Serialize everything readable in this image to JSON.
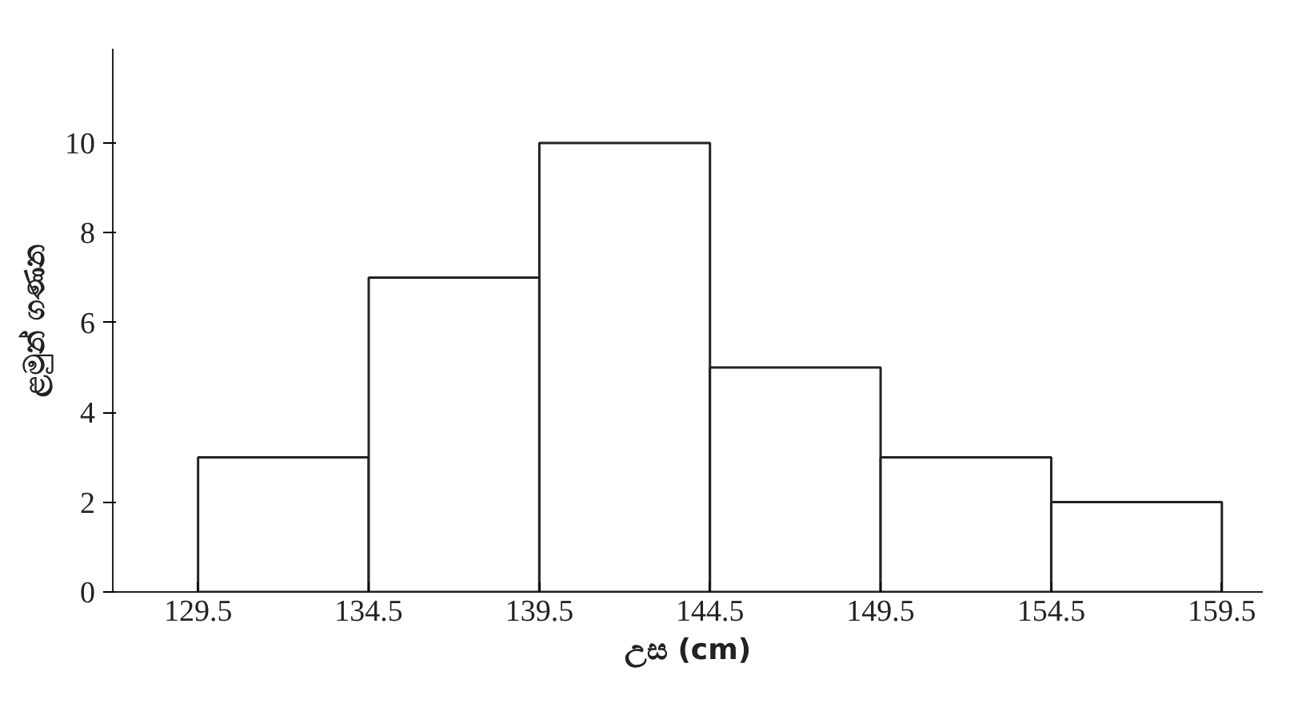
{
  "chart_data": {
    "type": "histogram",
    "xlabel": "උස (cm)",
    "ylabel": "ළමුන් ගණන",
    "bins": [
      129.5,
      134.5,
      139.5,
      144.5,
      149.5,
      154.5,
      159.5
    ],
    "values": [
      3,
      7,
      10,
      5,
      3,
      2
    ],
    "color": "#ffffff",
    "xlim": [
      127,
      160.7
    ],
    "ylim": [
      0,
      12.1
    ],
    "xticks": [
      129.5,
      134.5,
      139.5,
      144.5,
      149.5,
      154.5,
      159.5
    ],
    "yticks": [
      0,
      2,
      4,
      6,
      8,
      10
    ],
    "grid": false
  }
}
